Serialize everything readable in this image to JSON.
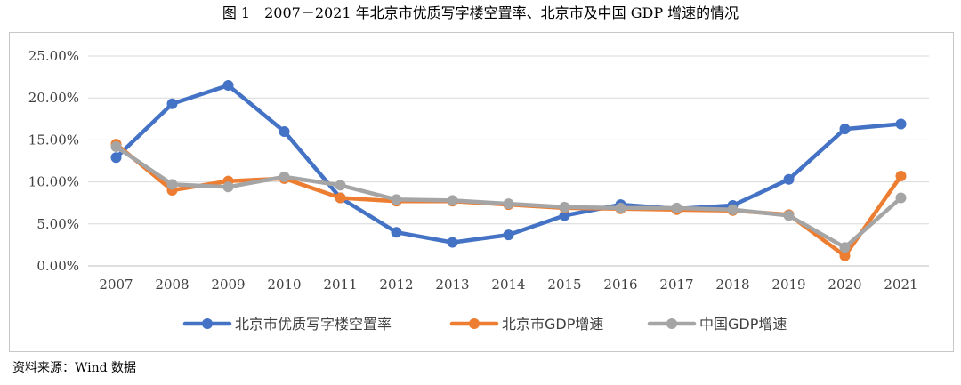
{
  "figure": {
    "title": "图 1　2007－2021 年北京市优质写字楼空置率、北京市及中国 GDP 增速的情况",
    "source": "资料来源：Wind 数据"
  },
  "chart_data": {
    "type": "line",
    "categories": [
      "2007",
      "2008",
      "2009",
      "2010",
      "2011",
      "2012",
      "2013",
      "2014",
      "2015",
      "2016",
      "2017",
      "2018",
      "2019",
      "2020",
      "2021"
    ],
    "y_ticks": [
      "0.00%",
      "5.00%",
      "10.00%",
      "15.00%",
      "20.00%",
      "25.00%"
    ],
    "ylim": [
      0,
      25
    ],
    "grid": true,
    "legend_position": "bottom",
    "series": [
      {
        "name": "北京市优质写字楼空置率",
        "color": "#4472C4",
        "values": [
          12.9,
          19.3,
          21.5,
          16.0,
          8.1,
          4.0,
          2.8,
          3.7,
          6.0,
          7.3,
          6.8,
          7.2,
          10.3,
          16.3,
          16.9
        ]
      },
      {
        "name": "北京市GDP增速",
        "color": "#ED7D31",
        "values": [
          14.5,
          9.0,
          10.1,
          10.4,
          8.1,
          7.7,
          7.7,
          7.3,
          6.9,
          6.8,
          6.7,
          6.6,
          6.1,
          1.2,
          10.7
        ]
      },
      {
        "name": "中国GDP增速",
        "color": "#A5A5A5",
        "values": [
          14.2,
          9.7,
          9.4,
          10.6,
          9.6,
          7.9,
          7.8,
          7.4,
          7.0,
          6.9,
          6.9,
          6.7,
          6.0,
          2.2,
          8.1
        ]
      }
    ]
  }
}
